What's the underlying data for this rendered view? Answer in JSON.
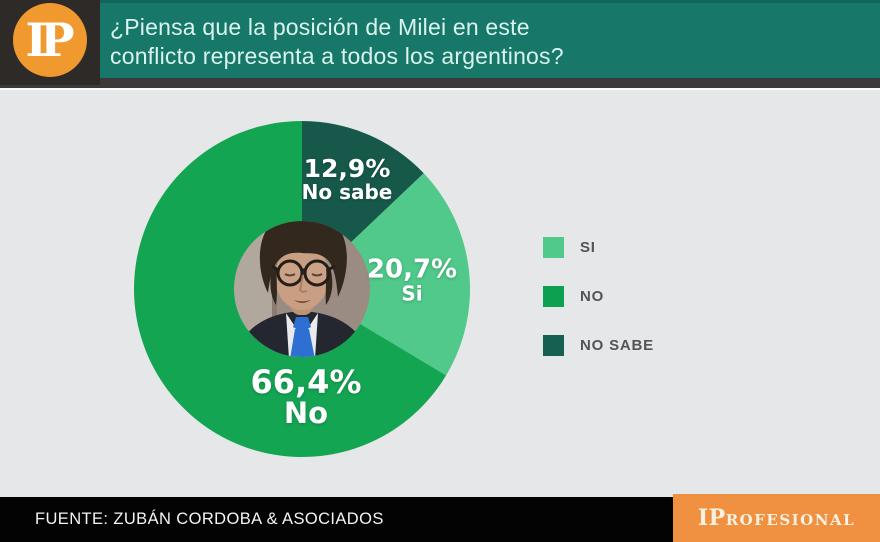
{
  "header": {
    "logo_text": "IP",
    "question_line1": "¿Piensa que la posición de Milei en este",
    "question_line2": "conflicto representa a todos los argentinos?"
  },
  "chart_data": {
    "type": "pie",
    "title": "¿Piensa que la posición de Milei en este conflicto representa a todos los argentinos?",
    "start_angle_deg": -90,
    "direction": "clockwise",
    "center_image": "milei-portrait",
    "slices": [
      {
        "label": "No sabe",
        "value": 12.9,
        "display": "12,9%",
        "color": "#16594a"
      },
      {
        "label": "Si",
        "value": 20.7,
        "display": "20,7%",
        "color": "#50c98a"
      },
      {
        "label": "No",
        "value": 66.4,
        "display": "66,4%",
        "color": "#14a553"
      }
    ],
    "legend_position": "right",
    "legend": [
      {
        "label": "SI",
        "color": "#50c98a"
      },
      {
        "label": "NO",
        "color": "#0ba150"
      },
      {
        "label": "NO SABE",
        "color": "#15604f"
      }
    ]
  },
  "footer": {
    "source": "FUENTE: ZUBÁN CORDOBA & ASOCIADOS",
    "brand": {
      "i": "I",
      "p": "P",
      "rest": "ROFESIONAL"
    }
  },
  "colors": {
    "header_teal": "#177869",
    "main_background": "#e6e7e9",
    "footer_black": "#030303",
    "brand_orange": "#ef9140",
    "logo_orange": "#f0992f"
  }
}
